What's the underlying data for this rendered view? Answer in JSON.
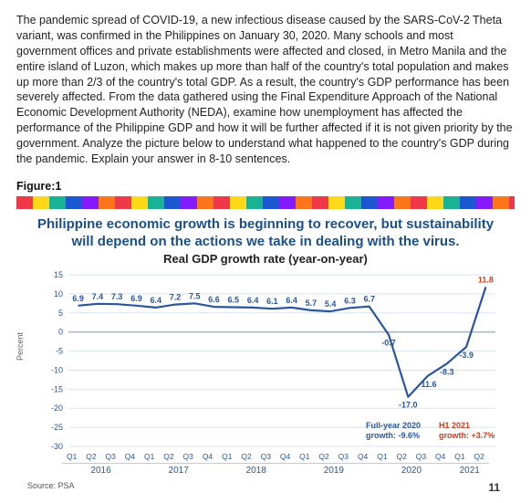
{
  "paragraph": "The pandemic spread of COVID-19, a new infectious disease caused by the SARS-CoV-2 Theta variant, was confirmed in the Philippines on January 30, 2020. Many schools and most government offices and private establishments were affected and closed, in Metro Manila and the entire island of Luzon, which makes up more than half of the country's total population and makes up more than 2/3 of the country's total GDP. As a result, the country's GDP performance has been severely affected. From the data gathered using the Final Expenditure Approach of the National Economic Development Authority (NEDA), examine how unemployment has affected the performance of the Philippine GDP and how it will be further affected if it is not given priority by the government. Analyze the picture below to understand what happened to the country's GDP during the pandemic. Explain your answer in 8-10 sentences.",
  "figure_label": "Figure:1",
  "title": "Philippine economic growth is beginning to recover, but sustainability will depend on the actions we take in dealing with the virus.",
  "subtitle": "Real GDP growth rate (year-on-year)",
  "y_axis_label": "Percent",
  "source": "Source: PSA",
  "page_number": "11",
  "chart": {
    "type": "line",
    "background_color": "#ffffff",
    "grid_color": "#d9e4f2",
    "line_color": "#2a55a0",
    "line_width": 2.2,
    "label_color": "#2a55a0",
    "label_fontsize": 9,
    "ylim": [
      -30,
      15
    ],
    "ytick_step": 5,
    "data_labels": [
      "6.9",
      "7.4",
      "7.3",
      "6.9",
      "6.4",
      "7.2",
      "7.5",
      "6.6",
      "6.5",
      "6.4",
      "6.1",
      "6.4",
      "5.7",
      "5.4",
      "6.3",
      "6.7",
      "-0.7",
      "-17.0",
      "-11.6",
      "-8.3",
      "-3.9",
      "11.8"
    ],
    "values": [
      6.9,
      7.4,
      7.3,
      6.9,
      6.4,
      7.2,
      7.5,
      6.6,
      6.5,
      6.4,
      6.1,
      6.4,
      5.7,
      5.4,
      6.3,
      6.7,
      -0.7,
      -17.0,
      -11.6,
      -8.3,
      -3.9,
      11.8
    ],
    "quarters": [
      "Q1",
      "Q2",
      "Q3",
      "Q4",
      "Q1",
      "Q2",
      "Q3",
      "Q4",
      "Q1",
      "Q2",
      "Q3",
      "Q4",
      "Q1",
      "Q2",
      "Q3",
      "Q4",
      "Q1",
      "Q2",
      "Q3",
      "Q4",
      "Q1",
      "Q2"
    ],
    "years": [
      "2016",
      "2017",
      "2018",
      "2019",
      "2020",
      "2021"
    ],
    "year_spans": [
      4,
      4,
      4,
      4,
      4,
      2
    ],
    "annotations": {
      "full_year_2020": {
        "label": "Full-year 2020",
        "growth": "growth: -9.6%",
        "color": "#2a55a0"
      },
      "h1_2021": {
        "label": "H1 2021",
        "growth": "growth: +3.7%",
        "color": "#d13c1a"
      },
      "last_point_color": "#d13c1a"
    }
  }
}
